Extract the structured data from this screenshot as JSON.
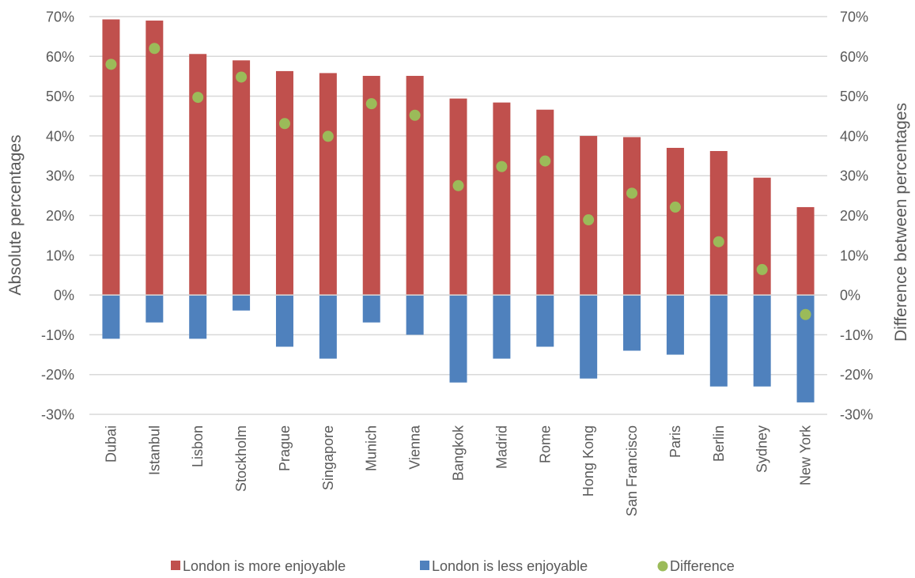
{
  "chart_data": {
    "type": "bar",
    "stacked": true,
    "categories": [
      "Dubai",
      "Istanbul",
      "Lisbon",
      "Stockholm",
      "Prague",
      "Singapore",
      "Munich",
      "Vienna",
      "Bangkok",
      "Madrid",
      "Rome",
      "Hong Kong",
      "San Francisco",
      "Paris",
      "Berlin",
      "Sydney",
      "New York"
    ],
    "series": [
      {
        "name": "London is more enjoyable",
        "type": "bar",
        "color": "#c0504d",
        "values": [
          69.3,
          69.0,
          60.6,
          59.0,
          56.3,
          55.8,
          55.1,
          55.1,
          49.4,
          48.4,
          46.6,
          40.0,
          39.7,
          37.0,
          36.2,
          29.5,
          22.1
        ]
      },
      {
        "name": "London is less enjoyable",
        "type": "bar",
        "color": "#4f81bd",
        "values": [
          -11.0,
          -6.9,
          -11.0,
          -3.9,
          -13.0,
          -16.0,
          -6.9,
          -10.0,
          -22.0,
          -16.0,
          -13.0,
          -21.0,
          -14.0,
          -15.0,
          -23.0,
          -23.0,
          -27.0
        ]
      },
      {
        "name": "Difference",
        "type": "scatter",
        "color": "#9bbb59",
        "axis": "right",
        "values": [
          58.0,
          62.0,
          49.7,
          54.8,
          43.1,
          39.9,
          48.1,
          45.2,
          27.5,
          32.3,
          33.7,
          18.9,
          25.6,
          22.1,
          13.4,
          6.4,
          -4.9
        ]
      }
    ],
    "ylabel": "Absolute percentages",
    "y2label": "Difference between percentages",
    "ylim": [
      -30,
      70
    ],
    "y2lim": [
      -30,
      70
    ],
    "yticks": [
      "70%",
      "60%",
      "50%",
      "40%",
      "30%",
      "20%",
      "10%",
      "0%",
      "-10%",
      "-20%",
      "-30%"
    ],
    "grid": true,
    "legend": "bottom"
  }
}
